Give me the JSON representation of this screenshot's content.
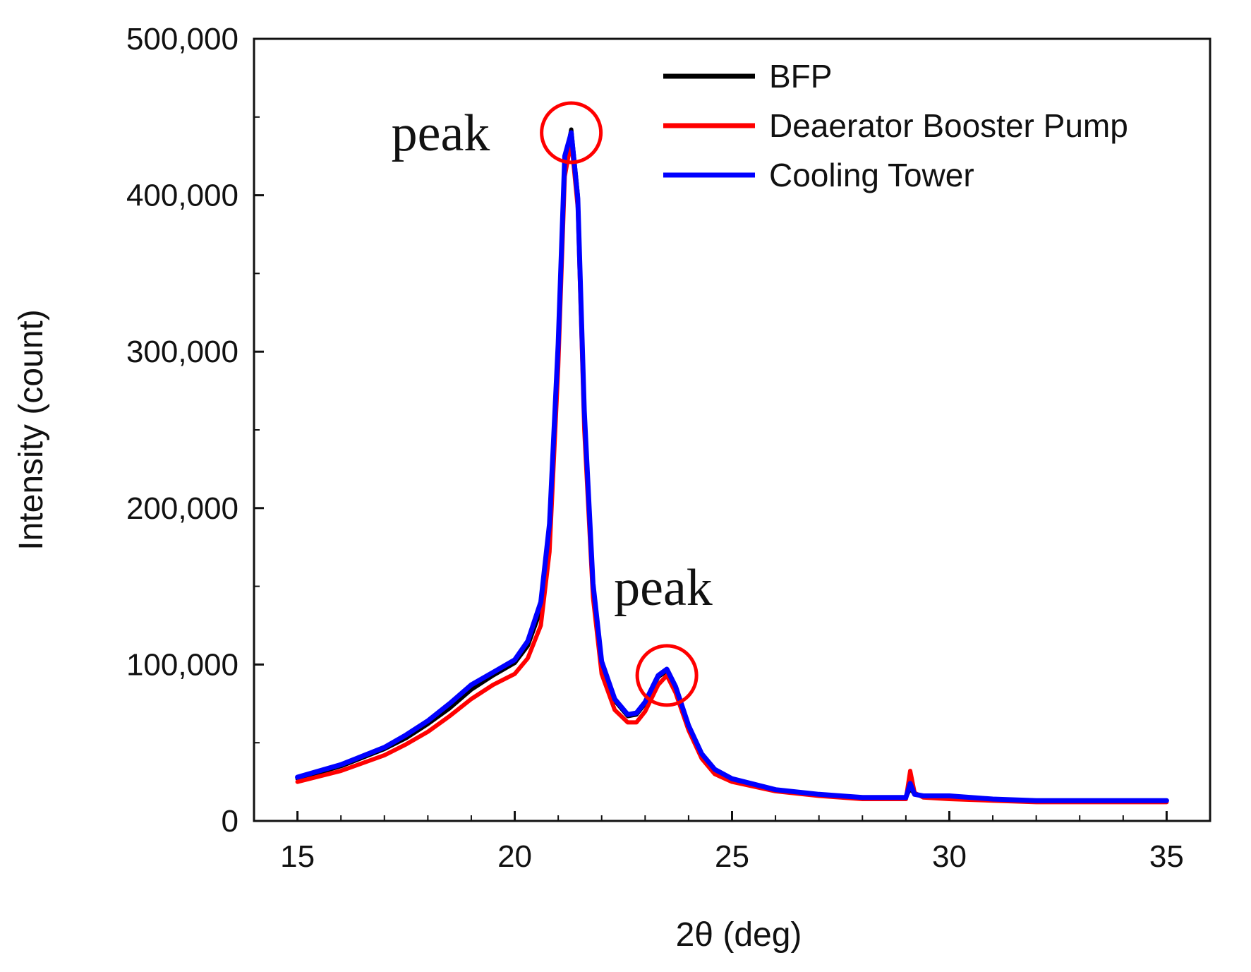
{
  "chart_data": {
    "type": "line",
    "title": "",
    "xlabel": "2θ (deg)",
    "ylabel": "Intensity (count)",
    "xlim": [
      14,
      36
    ],
    "ylim": [
      0,
      500000
    ],
    "x_ticks": [
      15,
      20,
      25,
      30,
      35
    ],
    "x_tick_labels": [
      "15",
      "20",
      "25",
      "30",
      "35"
    ],
    "y_ticks": [
      0,
      100000,
      200000,
      300000,
      400000,
      500000
    ],
    "y_tick_labels": [
      "0",
      "100,000",
      "200,000",
      "300,000",
      "400,000",
      "500,000"
    ],
    "legend_position": "top-right",
    "grid": false,
    "series": [
      {
        "name": "BFP",
        "color": "#000000",
        "x": [
          15,
          16,
          17,
          17.5,
          18,
          18.5,
          19,
          19.5,
          20,
          20.3,
          20.6,
          20.8,
          21.0,
          21.15,
          21.3,
          21.45,
          21.6,
          21.8,
          22.0,
          22.3,
          22.6,
          22.8,
          23.0,
          23.3,
          23.5,
          23.7,
          24.0,
          24.3,
          24.6,
          25,
          26,
          27,
          28,
          29,
          29.1,
          29.2,
          29.4,
          30,
          31,
          32,
          33,
          34,
          35
        ],
        "y": [
          27000,
          35000,
          46000,
          53000,
          62000,
          72000,
          84000,
          93000,
          101000,
          112000,
          135000,
          185000,
          300000,
          420000,
          442000,
          400000,
          260000,
          150000,
          100000,
          77000,
          67000,
          68000,
          75000,
          92000,
          96000,
          85000,
          60000,
          42000,
          32000,
          26000,
          20000,
          17000,
          15000,
          15000,
          21000,
          17000,
          16000,
          16000,
          14000,
          13000,
          13000,
          13000,
          13000
        ]
      },
      {
        "name": "Deaerator Booster Pump",
        "color": "#ff0000",
        "x": [
          15,
          16,
          17,
          17.5,
          18,
          18.5,
          19,
          19.5,
          20,
          20.3,
          20.6,
          20.8,
          21.0,
          21.15,
          21.3,
          21.45,
          21.6,
          21.8,
          22.0,
          22.3,
          22.6,
          22.8,
          23.0,
          23.3,
          23.5,
          23.7,
          24.0,
          24.3,
          24.6,
          25,
          26,
          27,
          28,
          29,
          29.1,
          29.2,
          29.4,
          30,
          31,
          32,
          33,
          34,
          35
        ],
        "y": [
          25000,
          32000,
          42000,
          49000,
          57000,
          67000,
          78000,
          87000,
          94000,
          104000,
          125000,
          172000,
          290000,
          412000,
          435000,
          392000,
          250000,
          143000,
          94000,
          71000,
          63000,
          63000,
          70000,
          87000,
          93000,
          82000,
          58000,
          40000,
          30000,
          25000,
          19000,
          16000,
          14000,
          14000,
          32000,
          18000,
          15000,
          14000,
          13000,
          12000,
          12000,
          12000,
          12000
        ]
      },
      {
        "name": "Cooling Tower",
        "color": "#0000ff",
        "x": [
          15,
          16,
          17,
          17.5,
          18,
          18.5,
          19,
          19.5,
          20,
          20.3,
          20.6,
          20.8,
          21.0,
          21.15,
          21.3,
          21.45,
          21.6,
          21.8,
          22.0,
          22.3,
          22.6,
          22.8,
          23.0,
          23.3,
          23.5,
          23.7,
          24.0,
          24.3,
          24.6,
          25,
          26,
          27,
          28,
          29,
          29.1,
          29.2,
          29.4,
          30,
          31,
          32,
          33,
          34,
          35
        ],
        "y": [
          28000,
          36000,
          47000,
          55000,
          64000,
          75000,
          87000,
          95000,
          103000,
          115000,
          140000,
          190000,
          305000,
          425000,
          440000,
          398000,
          262000,
          152000,
          102000,
          78000,
          68000,
          69000,
          76000,
          93000,
          97000,
          86000,
          61000,
          43000,
          33000,
          27000,
          20000,
          17000,
          15000,
          15000,
          24000,
          17000,
          16000,
          16000,
          14000,
          13000,
          13000,
          13000,
          13000
        ]
      }
    ],
    "annotations": [
      {
        "text": "peak",
        "x": 21.3,
        "y": 440000
      },
      {
        "text": "peak",
        "x": 23.5,
        "y": 93000
      }
    ],
    "annotation_color": "#ff0000"
  }
}
